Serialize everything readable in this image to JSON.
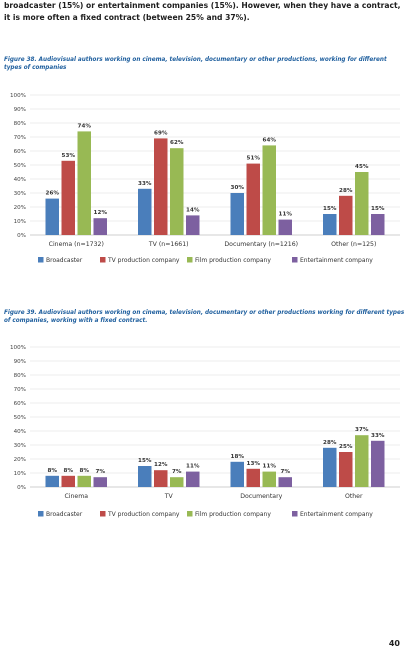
{
  "intro_text": "broadcaster (15%) or entertainment companies (15%). However, when they have a contract, it is more often a fixed contract (between 25% and 37%).",
  "page_number": "40",
  "colors": {
    "Broadcaster": "#4a7ebb",
    "TV production company": "#be4b48",
    "Film production company": "#98b954",
    "Entertainment company": "#7d60a0"
  },
  "figures": [
    {
      "caption": "Figure 38. Audiovisual authors working on cinema, television, documentary or other productions, working for different types of companies"
    },
    {
      "caption": "Figure 39. Audiovisual authors working on cinema, television, documentary or other productions working for different types of companies, working with a fixed contract."
    }
  ],
  "chart_data": [
    {
      "type": "bar",
      "title": "",
      "xlabel": "",
      "ylabel": "",
      "ylim": [
        0,
        100
      ],
      "yticks": [
        "0%",
        "10%",
        "20%",
        "30%",
        "40%",
        "50%",
        "60%",
        "70%",
        "80%",
        "90%",
        "100%"
      ],
      "categories": [
        "Cinema (n=1732)",
        "TV (n=1661)",
        "Documentary (n=1216)",
        "Other (n=125)"
      ],
      "series": [
        {
          "name": "Broadcaster",
          "values": [
            26,
            33,
            30,
            15
          ]
        },
        {
          "name": "TV production company",
          "values": [
            53,
            69,
            51,
            28
          ]
        },
        {
          "name": "Film production company",
          "values": [
            74,
            62,
            64,
            45
          ]
        },
        {
          "name": "Entertainment company",
          "values": [
            12,
            14,
            11,
            15
          ]
        }
      ],
      "legend": "bottom",
      "grid": true
    },
    {
      "type": "bar",
      "title": "",
      "xlabel": "",
      "ylabel": "",
      "ylim": [
        0,
        100
      ],
      "yticks": [
        "0%",
        "10%",
        "20%",
        "30%",
        "40%",
        "50%",
        "60%",
        "70%",
        "80%",
        "90%",
        "100%"
      ],
      "categories": [
        "Cinema",
        "TV",
        "Documentary",
        "Other"
      ],
      "series": [
        {
          "name": "Broadcaster",
          "values": [
            8,
            15,
            18,
            28
          ]
        },
        {
          "name": "TV production company",
          "values": [
            8,
            12,
            13,
            25
          ]
        },
        {
          "name": "Film production company",
          "values": [
            8,
            7,
            11,
            37
          ]
        },
        {
          "name": "Entertainment company",
          "values": [
            7,
            11,
            7,
            33
          ]
        }
      ],
      "legend": "bottom",
      "grid": true
    }
  ]
}
